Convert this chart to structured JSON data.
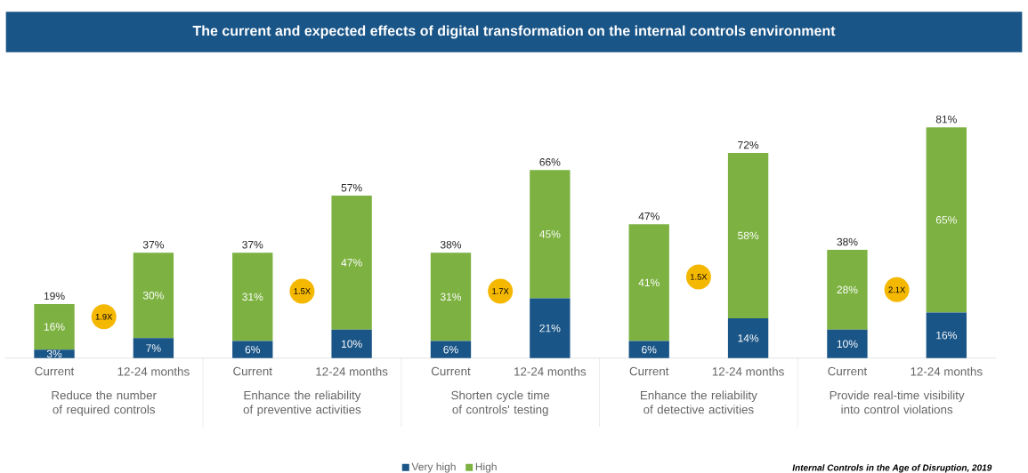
{
  "chart_data": {
    "type": "bar",
    "stacked": true,
    "title": "The current and expected effects of digital transformation on the internal controls environment",
    "categories": [
      "Current",
      "12-24 months",
      "Current",
      "12-24 months",
      "Current",
      "12-24 months",
      "Current",
      "12-24 months",
      "Current",
      "12-24 months"
    ],
    "series": [
      {
        "name": "Very high",
        "color": "#1a5587",
        "values": [
          3,
          7,
          6,
          10,
          6,
          21,
          6,
          14,
          10,
          16
        ],
        "value_labels": [
          "3%",
          "7%",
          "6%",
          "10%",
          "6%",
          "21%",
          "6%",
          "14%",
          "10%",
          "16%"
        ]
      },
      {
        "name": "High",
        "color": "#7db242",
        "values": [
          16,
          30,
          31,
          47,
          31,
          45,
          41,
          58,
          28,
          65
        ],
        "value_labels": [
          "16%",
          "30%",
          "31%",
          "47%",
          "31%",
          "45%",
          "41%",
          "58%",
          "28%",
          "65%"
        ]
      }
    ],
    "totals": [
      "19%",
      "37%",
      "37%",
      "57%",
      "38%",
      "66%",
      "47%",
      "72%",
      "38%",
      "81%"
    ],
    "annotations": [
      "Reduce the number of required controls",
      "Enhance the reliability of preventive activities",
      "Shorten cycle time of controls' testing",
      "Enhance the reliability of detective activities",
      "Provide real-time visibility into control violations",
      "1.9X",
      "1.5X",
      "1.7X",
      "1.5X",
      "2.1X",
      "Internal Controls in the Age of Disruption, 2019"
    ],
    "legend": "bottom"
  }
}
